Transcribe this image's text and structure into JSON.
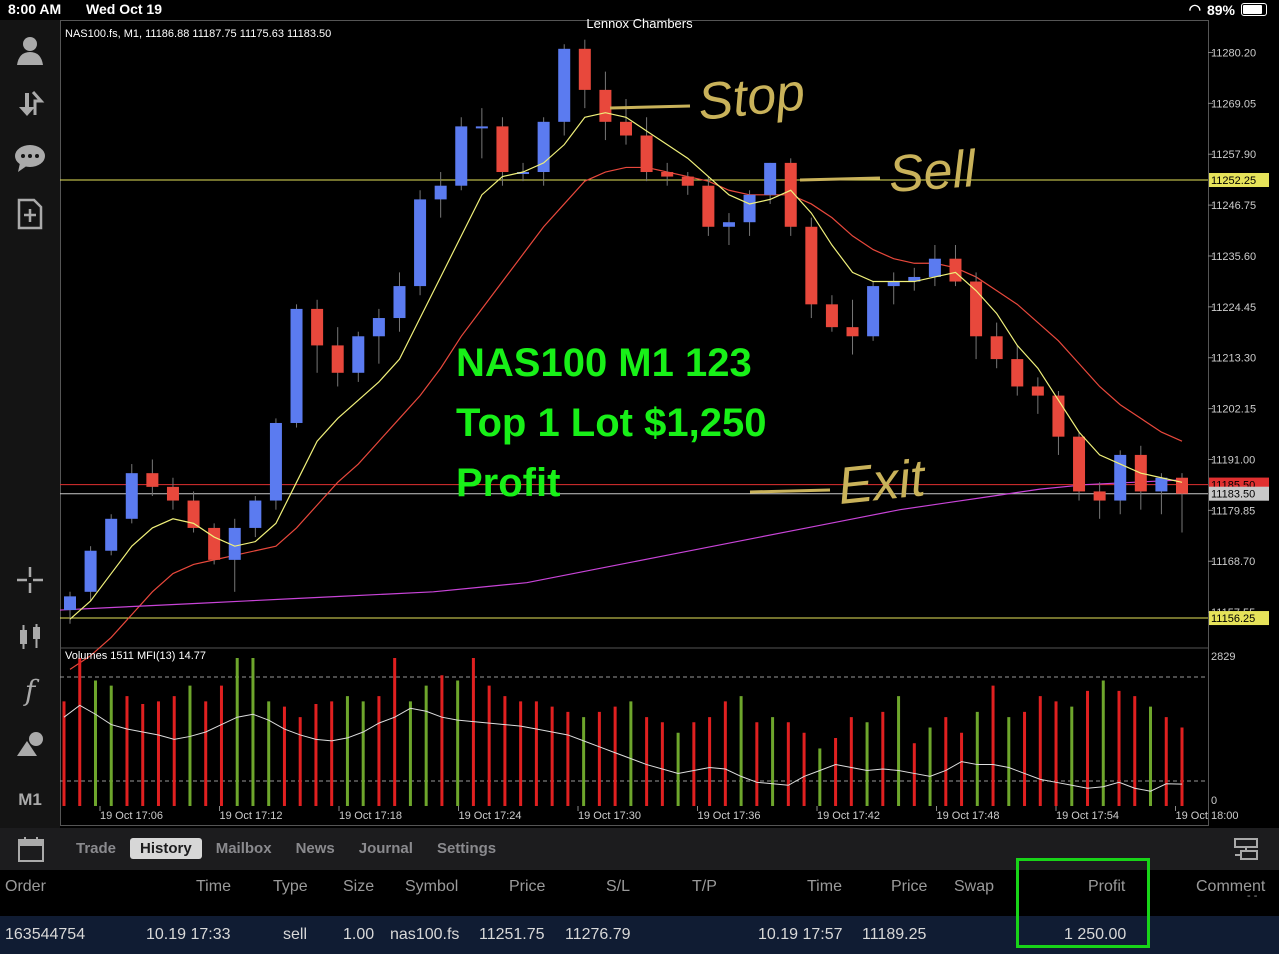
{
  "statusbar": {
    "time": "8:00 AM",
    "date": "Wed Oct 19",
    "battery": "89%"
  },
  "account_name": "Lennox Chambers",
  "toolbar": {
    "icons": [
      "account-icon",
      "trade-arrows-icon",
      "chat-icon",
      "new-order-icon",
      "crosshair-icon",
      "candlestick-icon",
      "function-icon",
      "objects-icon"
    ],
    "timeframe": "M1"
  },
  "chart_data": {
    "type": "candlestick",
    "symbol_header": "NAS100.fs, M1, 11186.88 11187.75 11175.63 11183.50",
    "ylim": [
      11151,
      11286
    ],
    "yticks": [
      "11280.20",
      "11269.05",
      "11257.90",
      "11246.75",
      "11235.60",
      "11224.45",
      "11213.30",
      "11202.15",
      "11191.00",
      "11179.85",
      "11168.70",
      "11157.55"
    ],
    "price_labels": [
      {
        "value": 11252.25,
        "text": "11252.25",
        "color": "#e6e35a"
      },
      {
        "value": 11185.5,
        "text": "11185.50",
        "color": "#e03030"
      },
      {
        "value": 11183.5,
        "text": "11183.50",
        "color": "#c8c8c8"
      },
      {
        "value": 11156.25,
        "text": "11156.25",
        "color": "#e6e35a"
      }
    ],
    "xticks": [
      "19 Oct 17:06",
      "19 Oct 17:12",
      "19 Oct 17:18",
      "19 Oct 17:24",
      "19 Oct 17:30",
      "19 Oct 17:36",
      "19 Oct 17:42",
      "19 Oct 17:48",
      "19 Oct 17:54",
      "19 Oct 18:00"
    ],
    "candles": [
      [
        11158,
        11162,
        11155,
        11161
      ],
      [
        11162,
        11172,
        11160,
        11171
      ],
      [
        11171,
        11179,
        11170,
        11178
      ],
      [
        11178,
        11190,
        11177,
        11188
      ],
      [
        11188,
        11191,
        11183,
        11185
      ],
      [
        11185,
        11187,
        11180,
        11182
      ],
      [
        11182,
        11184,
        11175,
        11176
      ],
      [
        11176,
        11177,
        11168,
        11169
      ],
      [
        11169,
        11178,
        11162,
        11176
      ],
      [
        11176,
        11183,
        11174,
        11182
      ],
      [
        11182,
        11200,
        11180,
        11199
      ],
      [
        11199,
        11225,
        11198,
        11224
      ],
      [
        11224,
        11226,
        11210,
        11216
      ],
      [
        11216,
        11220,
        11207,
        11210
      ],
      [
        11210,
        11219,
        11208,
        11218
      ],
      [
        11218,
        11224,
        11212,
        11222
      ],
      [
        11222,
        11232,
        11219,
        11229
      ],
      [
        11229,
        11250,
        11227,
        11248
      ],
      [
        11248,
        11254,
        11244,
        11251
      ],
      [
        11251,
        11266,
        11250,
        11264
      ],
      [
        11264,
        11268,
        11257,
        11264
      ],
      [
        11264,
        11266,
        11251,
        11254
      ],
      [
        11254,
        11256,
        11252,
        11254
      ],
      [
        11254,
        11266,
        11251,
        11265
      ],
      [
        11265,
        11282,
        11262,
        11281
      ],
      [
        11281,
        11283,
        11268,
        11272
      ],
      [
        11272,
        11276,
        11261,
        11265
      ],
      [
        11265,
        11270,
        11260,
        11262
      ],
      [
        11262,
        11266,
        11252,
        11254
      ],
      [
        11254,
        11256,
        11251,
        11253
      ],
      [
        11253,
        11254,
        11249,
        11251
      ],
      [
        11251,
        11253,
        11240,
        11242
      ],
      [
        11242,
        11245,
        11238,
        11243
      ],
      [
        11243,
        11250,
        11240,
        11249
      ],
      [
        11249,
        11256,
        11247,
        11256
      ],
      [
        11256,
        11257,
        11240,
        11242
      ],
      [
        11242,
        11244,
        11222,
        11225
      ],
      [
        11225,
        11227,
        11219,
        11220
      ],
      [
        11220,
        11226,
        11214,
        11218
      ],
      [
        11218,
        11230,
        11217,
        11229
      ],
      [
        11229,
        11232,
        11225,
        11230
      ],
      [
        11230,
        11233,
        11228,
        11231
      ],
      [
        11231,
        11238,
        11229,
        11235
      ],
      [
        11235,
        11238,
        11229,
        11230
      ],
      [
        11230,
        11232,
        11213,
        11218
      ],
      [
        11218,
        11221,
        11211,
        11213
      ],
      [
        11213,
        11216,
        11205,
        11207
      ],
      [
        11207,
        11209,
        11201,
        11205
      ],
      [
        11205,
        11206,
        11192,
        11196
      ],
      [
        11196,
        11197,
        11182,
        11184
      ],
      [
        11184,
        11186,
        11178,
        11182
      ],
      [
        11182,
        11193,
        11179,
        11192
      ],
      [
        11192,
        11194,
        11180,
        11184
      ],
      [
        11184,
        11188,
        11179,
        11187
      ],
      [
        11187,
        11188,
        11175,
        11183.5
      ]
    ],
    "ma_fast": [
      11156,
      11160,
      11166,
      11172,
      11176,
      11178,
      11177,
      11174,
      11172,
      11173,
      11177,
      11186,
      11195,
      11200,
      11204,
      11208,
      11213,
      11222,
      11231,
      11240,
      11249,
      11253,
      11254,
      11256,
      11260,
      11266,
      11267,
      11266,
      11263,
      11260,
      11257,
      11253,
      11249,
      11247,
      11248,
      11250,
      11245,
      11238,
      11232,
      11230,
      11230,
      11230,
      11231,
      11232,
      11228,
      11223,
      11216,
      11211,
      11204,
      11197,
      11192,
      11190,
      11188,
      11187,
      11186
    ],
    "ma_slow": [
      11145,
      11148,
      11152,
      11157,
      11162,
      11166,
      11168,
      11169,
      11170,
      11171,
      11172,
      11176,
      11181,
      11186,
      11190,
      11195,
      11200,
      11205,
      11211,
      11218,
      11224,
      11230,
      11236,
      11242,
      11247,
      11252,
      11254,
      11255,
      11255,
      11254,
      11253,
      11252,
      11250,
      11249,
      11249,
      11249,
      11247,
      11244,
      11240,
      11237,
      11235,
      11234,
      11234,
      11233,
      11231,
      11228,
      11225,
      11221,
      11217,
      11212,
      11207,
      11203,
      11200,
      11197,
      11195
    ],
    "ma_trend": [
      11158,
      11158.5,
      11159,
      11159.5,
      11160,
      11160.5,
      11161,
      11161.5,
      11162,
      11163,
      11164,
      11166,
      11168,
      11170,
      11172,
      11174,
      11176,
      11178,
      11180,
      11181.5,
      11183,
      11184.5,
      11185.5,
      11186,
      11186.5
    ],
    "hlines": [
      {
        "value": 11252.25,
        "color": "#e6e35a"
      },
      {
        "value": 11185.5,
        "color": "#e03030"
      },
      {
        "value": 11183.5,
        "color": "#c8c8c8"
      },
      {
        "value": 11156.25,
        "color": "#e6e35a"
      }
    ],
    "annotation_text": [
      "NAS100 M1 123",
      "Top 1 Lot $1,250",
      "Profit"
    ],
    "handwriting": [
      "Stop",
      "Sell",
      "Exit"
    ],
    "volume_panel": {
      "label": "Volumes 1511 MFI(13) 14.77",
      "max_label": "2829",
      "min_label": "0",
      "ylim": [
        0,
        2829
      ],
      "bars": [
        2000,
        2829,
        2400,
        2300,
        2100,
        1950,
        2000,
        2100,
        2300,
        2000,
        2300,
        2829,
        2829,
        2000,
        1900,
        1700,
        1950,
        2000,
        2100,
        2000,
        2100,
        2829,
        2000,
        2300,
        2500,
        2400,
        2829,
        2300,
        2100,
        2000,
        2000,
        1900,
        1800,
        1700,
        1800,
        1900,
        2000,
        1700,
        1600,
        1400,
        1600,
        1700,
        2000,
        2100,
        1600,
        1700,
        1600,
        1400,
        1100,
        1300,
        1700,
        1600,
        1800,
        2100,
        1200,
        1500,
        1700,
        1400,
        1800,
        2300,
        1700,
        1800,
        2100,
        2000,
        1900,
        2200,
        2400,
        2200,
        2100,
        1900,
        1700,
        1500
      ],
      "colors": "rrggrrrrgrrgggrrrrggrrggrgrrrrrrrgrrgrrgrrrgrgrrgrrgrgrgrrgrgrrrgrgrrgrr",
      "mfi": [
        60,
        68,
        62,
        55,
        52,
        50,
        48,
        45,
        47,
        50,
        55,
        60,
        62,
        58,
        52,
        48,
        45,
        44,
        46,
        50,
        56,
        60,
        66,
        64,
        60,
        58,
        57,
        56,
        55,
        54,
        52,
        50,
        48,
        44,
        40,
        36,
        32,
        28,
        25,
        22,
        24,
        26,
        25,
        20,
        16,
        15,
        14,
        20,
        24,
        28,
        26,
        24,
        25,
        24,
        22,
        20,
        24,
        30,
        28,
        28,
        26,
        22,
        18,
        16,
        14,
        12,
        13,
        16,
        12,
        10,
        15,
        14.77
      ]
    }
  },
  "bottombar": {
    "tabs": [
      "Trade",
      "History",
      "Mailbox",
      "News",
      "Journal",
      "Settings"
    ],
    "active_tab": "History"
  },
  "history": {
    "columns": [
      "Order",
      "Time",
      "Type",
      "Size",
      "Symbol",
      "Price",
      "S/L",
      "T/P",
      "Time",
      "Price",
      "Swap",
      "Profit",
      "Comment"
    ],
    "row": {
      "order": "163544754",
      "open_time": "10.19 17:33",
      "type": "sell",
      "size": "1.00",
      "symbol": "nas100.fs",
      "open_price": "11251.75",
      "sl": "11276.79",
      "tp": "",
      "close_time": "10.19 17:57",
      "close_price": "11189.25",
      "swap": "",
      "profit": "1 250.00",
      "comment": ""
    },
    "comment_dash": "- -"
  },
  "colors": {
    "bull": "#5b7bf0",
    "bear": "#e8483c",
    "annotation": "#18f018",
    "handwriting": "#c9b25a",
    "ma_fast": "#f0f07a",
    "ma_slow": "#e8483c",
    "ma_trend": "#c844d8"
  }
}
